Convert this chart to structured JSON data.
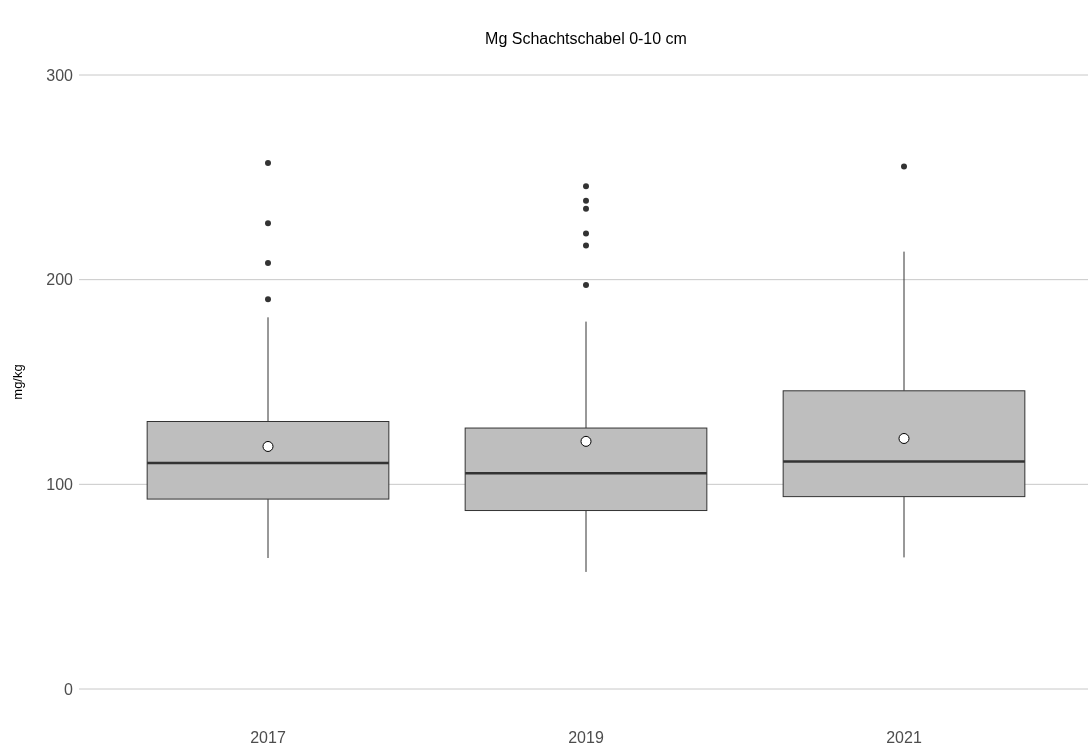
{
  "chart_data": {
    "type": "box",
    "title": "Mg Schachtschabel 0-10 cm",
    "ylabel": "mg/kg",
    "categories": [
      "2017",
      "2019",
      "2021"
    ],
    "boxes": [
      {
        "low": 64,
        "q1": 92.8,
        "median": 110.4,
        "q3": 130.7,
        "high": 181.6,
        "mean": 118.5,
        "outliers": [
          257,
          227.6,
          208.2,
          190.4
        ]
      },
      {
        "low": 57.2,
        "q1": 87.2,
        "median": 105.4,
        "q3": 127.5,
        "high": 179.5,
        "mean": 121,
        "outliers": [
          245.7,
          238.5,
          234.6,
          222.6,
          216.7,
          197.4
        ]
      },
      {
        "low": 64.3,
        "q1": 94,
        "median": 111.1,
        "q3": 145.7,
        "high": 213.7,
        "mean": 122.4,
        "outliers": [
          255.3
        ]
      }
    ],
    "color": "#bebebe",
    "ylim": [
      0,
      300
    ],
    "yticks": [
      0,
      100,
      200,
      300
    ],
    "grid": "y"
  }
}
